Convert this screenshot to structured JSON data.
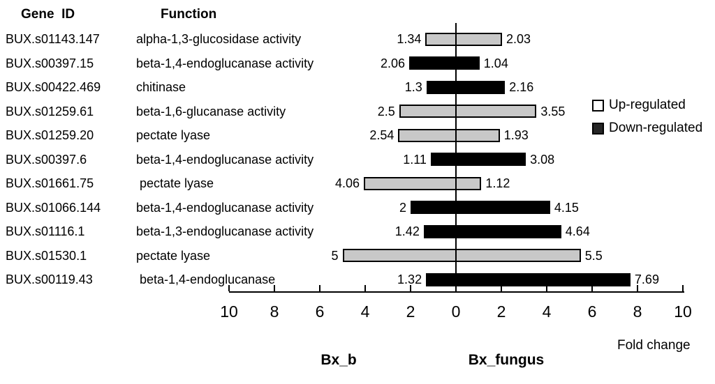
{
  "header": {
    "gene_id": "Gene  ID",
    "function": "Function"
  },
  "legend": {
    "items": [
      {
        "label": "Up-regulated",
        "swatch": "#ffffff"
      },
      {
        "label": "Down-regulated",
        "swatch": "#262626"
      }
    ]
  },
  "axis": {
    "tick_labels": [
      "10",
      "8",
      "6",
      "4",
      "2",
      "0",
      "2",
      "4",
      "6",
      "8",
      "10"
    ],
    "xlabel": "Fold change",
    "left_group": "Bx_b",
    "right_group": "Bx_fungus"
  },
  "chart_data": {
    "type": "bar",
    "orientation": "horizontal-bidirectional",
    "xlabel": "Fold change",
    "x_ticks": [
      10,
      8,
      6,
      4,
      2,
      0,
      2,
      4,
      6,
      8,
      10
    ],
    "axis_range_each_side": [
      0,
      10
    ],
    "left_series": "Bx_b",
    "right_series": "Bx_fungus",
    "legend_position": "right",
    "colors": {
      "up": "#c8c8c8",
      "down": "#000000"
    },
    "rows": [
      {
        "gene_id": "BUX.s01143.147",
        "function": "alpha-1,3-glucosidase activity",
        "bx_b": "1.34",
        "bx_fungus": "2.03",
        "regulation": "up"
      },
      {
        "gene_id": "BUX.s00397.15",
        "function": "beta-1,4-endoglucanase activity",
        "bx_b": "2.06",
        "bx_fungus": "1.04",
        "regulation": "down"
      },
      {
        "gene_id": "BUX.s00422.469",
        "function": "chitinase",
        "bx_b": "1.3",
        "bx_fungus": "2.16",
        "regulation": "down"
      },
      {
        "gene_id": "BUX.s01259.61",
        "function": "beta-1,6-glucanase activity",
        "bx_b": "2.5",
        "bx_fungus": "3.55",
        "regulation": "up"
      },
      {
        "gene_id": "BUX.s01259.20",
        "function": "pectate lyase",
        "bx_b": "2.54",
        "bx_fungus": "1.93",
        "regulation": "up"
      },
      {
        "gene_id": "BUX.s00397.6",
        "function": "beta-1,4-endoglucanase activity",
        "bx_b": "1.11",
        "bx_fungus": "3.08",
        "regulation": "down"
      },
      {
        "gene_id": "BUX.s01661.75",
        "function": " pectate lyase",
        "bx_b": "4.06",
        "bx_fungus": "1.12",
        "regulation": "up"
      },
      {
        "gene_id": "BUX.s01066.144",
        "function": "beta-1,4-endoglucanase activity",
        "bx_b": "2",
        "bx_fungus": "4.15",
        "regulation": "down"
      },
      {
        "gene_id": "BUX.s01116.1",
        "function": "beta-1,3-endoglucanase activity",
        "bx_b": "1.42",
        "bx_fungus": "4.64",
        "regulation": "down"
      },
      {
        "gene_id": "BUX.s01530.1",
        "function": "pectate lyase",
        "bx_b": "5",
        "bx_fungus": "5.5",
        "regulation": "up"
      },
      {
        "gene_id": "BUX.s00119.43",
        "function": " beta-1,4-endoglucanase",
        "bx_b": "1.32",
        "bx_fungus": "7.69",
        "regulation": "down"
      }
    ]
  }
}
